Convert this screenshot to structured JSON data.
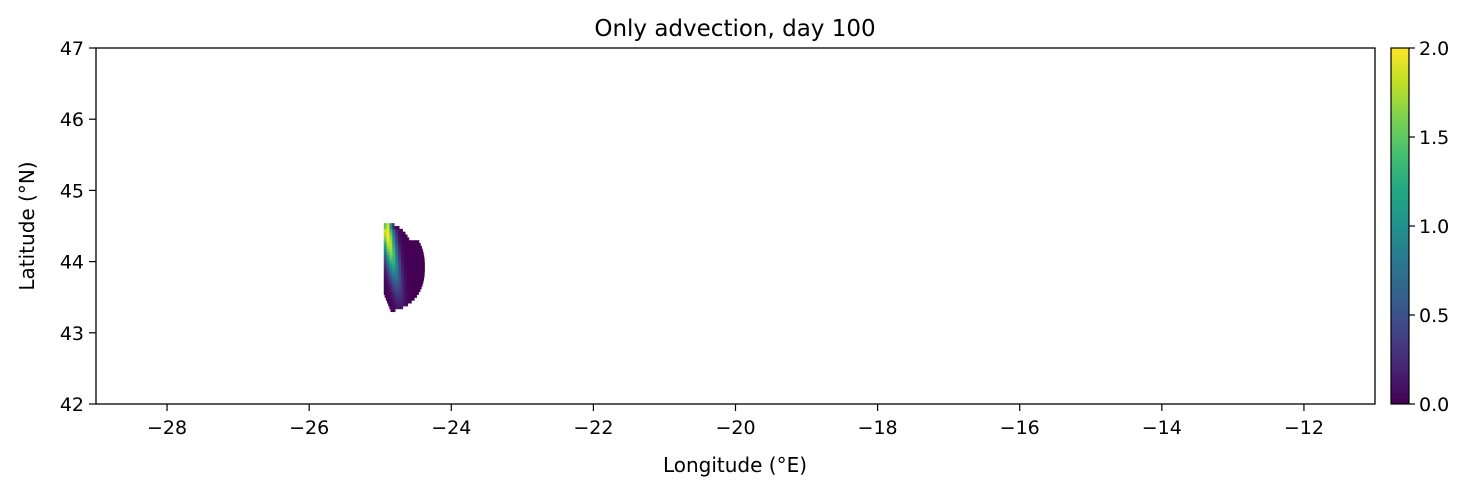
{
  "chart_data": {
    "type": "heatmap",
    "title": "Only advection, day 100",
    "xlabel": "Longitude (°E)",
    "ylabel": "Latitude (°N)",
    "xlim": [
      -29,
      -11
    ],
    "ylim": [
      42,
      47
    ],
    "x_ticks": [
      -28,
      -26,
      -24,
      -22,
      -20,
      -18,
      -16,
      -14,
      -12
    ],
    "x_tick_labels": [
      "−28",
      "−26",
      "−24",
      "−22",
      "−20",
      "−18",
      "−16",
      "−14",
      "−12"
    ],
    "y_ticks": [
      42,
      43,
      44,
      45,
      46,
      47
    ],
    "y_tick_labels": [
      "42",
      "43",
      "44",
      "45",
      "46",
      "47"
    ],
    "colorbar": {
      "colormap": "viridis",
      "range": [
        0,
        2
      ],
      "ticks": [
        0,
        0.5,
        1,
        1.5,
        2
      ],
      "tick_labels": [
        "0.0",
        "0.5",
        "1.0",
        "1.5",
        "2.0"
      ]
    },
    "grid": false,
    "patch": {
      "lon_range": [
        -24.95,
        -24.38
      ],
      "lat_range": [
        43.3,
        44.55
      ],
      "peak_value": 2.0,
      "peak_location": [
        -24.9,
        44.4
      ],
      "background_value": 0.0
    }
  },
  "colors": {
    "viridis": [
      "#440154",
      "#482475",
      "#414487",
      "#355f8d",
      "#2a788e",
      "#21918c",
      "#22a884",
      "#44bf70",
      "#7ad151",
      "#bddf26",
      "#fde725"
    ]
  }
}
